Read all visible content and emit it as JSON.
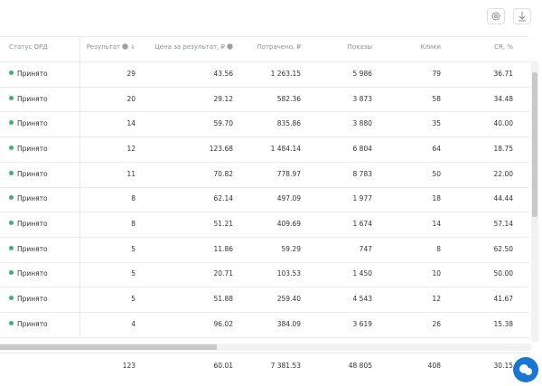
{
  "table": {
    "headers": [
      "Статус ОРД",
      "Результат",
      "Цена за результат, ₽",
      "Потрачено, ₽",
      "Показы",
      "Клики",
      "CR, %"
    ],
    "rows": [
      [
        "Принято",
        "29",
        "43.56",
        "1 263.15",
        "5 986",
        "79",
        "36.71"
      ],
      [
        "Принято",
        "20",
        "29.12",
        "582.36",
        "3 873",
        "58",
        "34.48"
      ],
      [
        "Принято",
        "14",
        "59.70",
        "835.86",
        "3 880",
        "35",
        "40.00"
      ],
      [
        "Принято",
        "12",
        "123.68",
        "1 484.14",
        "6 804",
        "64",
        "18.75"
      ],
      [
        "Принято",
        "11",
        "70.82",
        "778.97",
        "8 783",
        "50",
        "22.00"
      ],
      [
        "Принято",
        "8",
        "62.14",
        "497.09",
        "1 977",
        "18",
        "44.44"
      ],
      [
        "Принято",
        "8",
        "51.21",
        "409.69",
        "1 674",
        "14",
        "57.14"
      ],
      [
        "Принято",
        "5",
        "11.86",
        "59.29",
        "747",
        "8",
        "62.50"
      ],
      [
        "Принято",
        "5",
        "20.71",
        "103.53",
        "1 450",
        "10",
        "50.00"
      ],
      [
        "Принято",
        "5",
        "51.88",
        "259.40",
        "4 543",
        "12",
        "41.67"
      ],
      [
        "Принято",
        "4",
        "96.02",
        "384.09",
        "3 619",
        "26",
        "15.38"
      ]
    ],
    "totals": [
      "123",
      "60.01",
      "7 381.53",
      "48 805",
      "408",
      "30.15"
    ]
  }
}
